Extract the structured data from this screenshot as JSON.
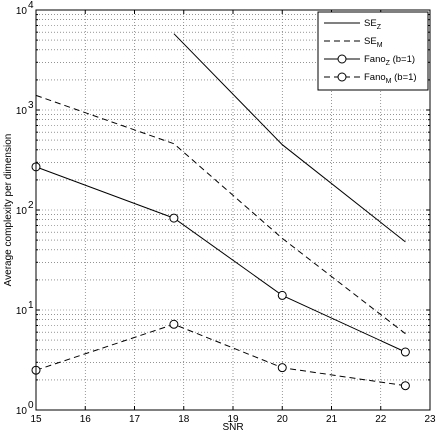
{
  "chart_data": {
    "type": "line",
    "title": "",
    "xlabel": "SNR",
    "ylabel": "Average complexity per dimension",
    "xlim": [
      15,
      23
    ],
    "ylim": [
      1,
      10000
    ],
    "yscale": "log",
    "grid": true,
    "grid_style": "dotted",
    "legend_position": "top-right",
    "x_ticks": [
      "15",
      "16",
      "17",
      "18",
      "19",
      "20",
      "21",
      "22",
      "23"
    ],
    "y_ticks": [
      {
        "base": "10",
        "exp": "0"
      },
      {
        "base": "10",
        "exp": "1"
      },
      {
        "base": "10",
        "exp": "2"
      },
      {
        "base": "10",
        "exp": "3"
      },
      {
        "base": "10",
        "exp": "4"
      }
    ],
    "series": [
      {
        "name": "SE_Z",
        "legend_main": "SE",
        "legend_sub": "Z",
        "legend_tail": "",
        "style": "solid",
        "marker": "none",
        "x": [
          17.8,
          20,
          22.5
        ],
        "y": [
          5800,
          450,
          48
        ]
      },
      {
        "name": "SE_M",
        "legend_main": "SE",
        "legend_sub": "M",
        "legend_tail": "",
        "style": "dashed",
        "marker": "none",
        "x": [
          15,
          17.8,
          20,
          22.5
        ],
        "y": [
          1400,
          460,
          52,
          5.8
        ]
      },
      {
        "name": "Fano_Z (b=1)",
        "legend_main": "Fano",
        "legend_sub": "Z",
        "legend_tail": " (b=1)",
        "style": "solid",
        "marker": "circle",
        "x": [
          15,
          17.8,
          20,
          22.5
        ],
        "y": [
          270,
          83,
          14,
          3.8
        ]
      },
      {
        "name": "Fano_M (b=1)",
        "legend_main": "Fano",
        "legend_sub": "M",
        "legend_tail": " (b=1)",
        "style": "dashed",
        "marker": "circle",
        "x": [
          15,
          17.8,
          20,
          22.5
        ],
        "y": [
          2.5,
          7.2,
          2.65,
          1.75
        ]
      }
    ]
  }
}
